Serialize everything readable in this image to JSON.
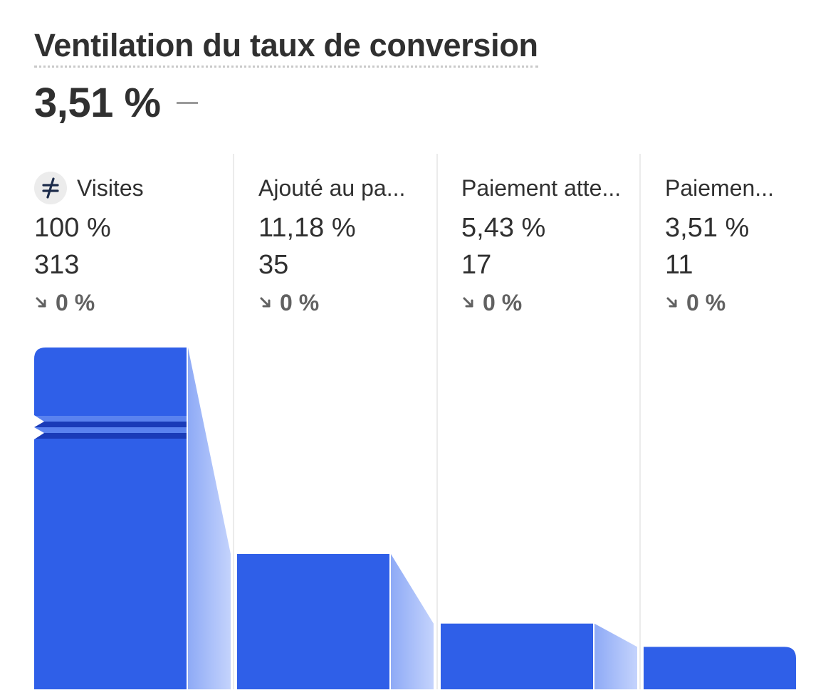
{
  "header": {
    "title": "Ventilation du taux de conversion",
    "value": "3,51 %",
    "comparison": "—"
  },
  "colors": {
    "bar": "#2f5fe8",
    "connector_start": "#8eaaf6",
    "connector_end": "#c4d3fc",
    "break_mark": "#1a3bb8",
    "divider": "#ebebeb"
  },
  "stages": [
    {
      "label": "Visites",
      "icon": "strikethrough-equals-icon",
      "percent": "100 %",
      "count": "313",
      "change": "0 %",
      "change_icon": "arrow-down-right-icon"
    },
    {
      "label": "Ajouté au pa...",
      "percent": "11,18 %",
      "count": "35",
      "change": "0 %",
      "change_icon": "arrow-down-right-icon"
    },
    {
      "label": "Paiement atte...",
      "percent": "5,43 %",
      "count": "17",
      "change": "0 %",
      "change_icon": "arrow-down-right-icon"
    },
    {
      "label": "Paiemen...",
      "percent": "3,51 %",
      "count": "11",
      "change": "0 %",
      "change_icon": "arrow-down-right-icon"
    }
  ],
  "chart_data": {
    "type": "bar",
    "categories": [
      "Visites",
      "Ajouté au pa...",
      "Paiement atte...",
      "Paiemen..."
    ],
    "values": [
      313,
      35,
      17,
      11
    ],
    "percent_values": [
      100,
      11.18,
      5.43,
      3.51
    ],
    "axis_break_on_first_bar": true,
    "title": "Ventilation du taux de conversion",
    "xlabel": "",
    "ylabel": ""
  }
}
